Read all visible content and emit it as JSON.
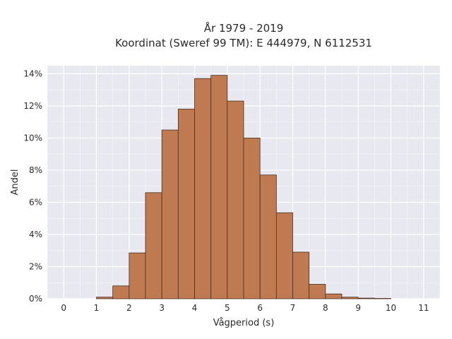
{
  "chart_data": {
    "type": "bar",
    "title": "År 1979 - 2019",
    "subtitle": "Koordinat (Sweref 99 TM): E 444979, N 6112531",
    "xlabel": "Vågperiod (s)",
    "ylabel": "Andel",
    "xlim": [
      -0.5,
      11.5
    ],
    "ylim": [
      0,
      14.5
    ],
    "x_ticks": [
      0,
      1,
      2,
      3,
      4,
      5,
      6,
      7,
      8,
      9,
      10,
      11
    ],
    "y_ticks": [
      0,
      2,
      4,
      6,
      8,
      10,
      12,
      14
    ],
    "y_tick_suffix": "%",
    "bin_width": 0.5,
    "bins_start": [
      1.0,
      1.5,
      2.0,
      2.5,
      3.0,
      3.5,
      4.0,
      4.5,
      5.0,
      5.5,
      6.0,
      6.5,
      7.0,
      7.5,
      8.0,
      8.5,
      9.0,
      9.5
    ],
    "values": [
      0.1,
      0.8,
      2.85,
      6.6,
      10.5,
      11.8,
      13.7,
      13.9,
      12.3,
      10.0,
      7.7,
      5.35,
      2.9,
      0.9,
      0.3,
      0.1,
      0.04,
      0.02
    ],
    "grid": true,
    "colors": {
      "bar_fill": "#bf7a52",
      "bar_edge": "#4a2f1f",
      "plot_background": "#e8e8f0",
      "grid": "#ffffff"
    }
  }
}
